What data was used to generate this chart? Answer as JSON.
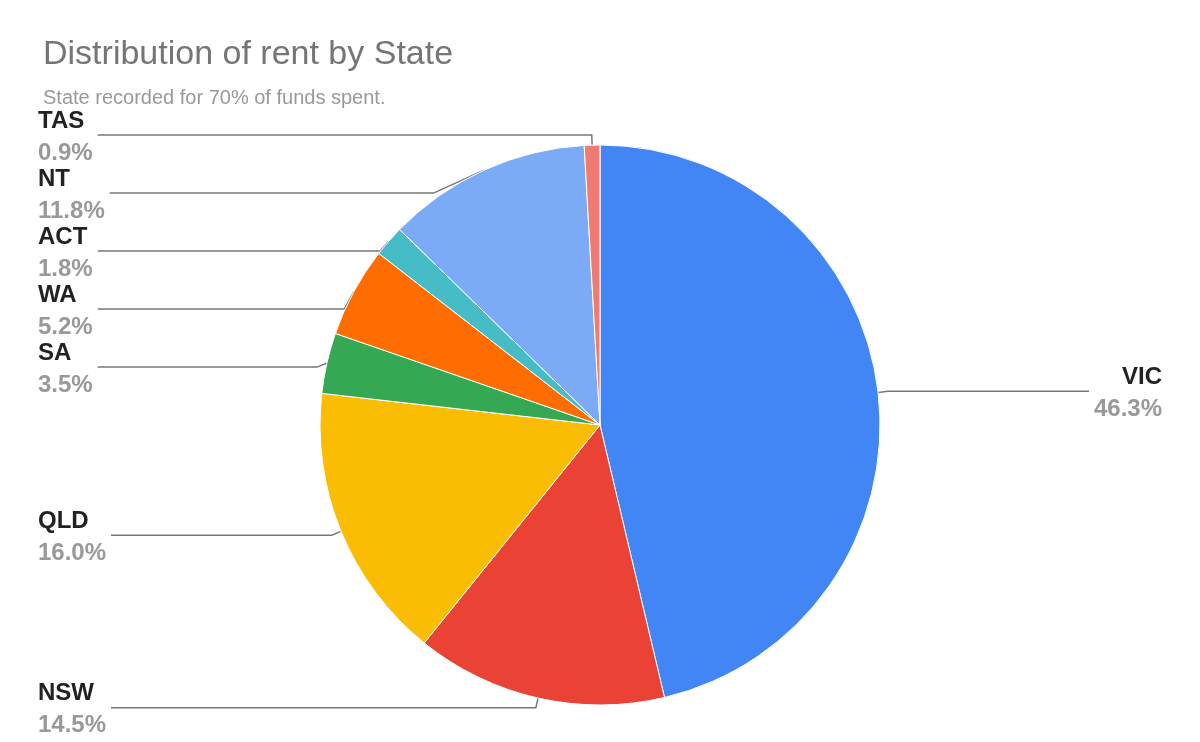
{
  "chart_data": {
    "type": "pie",
    "title": "Distribution of rent by State",
    "subtitle": "State recorded for 70% of funds spent.",
    "categories": [
      "VIC",
      "NSW",
      "QLD",
      "SA",
      "WA",
      "ACT",
      "NT",
      "TAS"
    ],
    "values": [
      46.3,
      14.5,
      16.0,
      3.5,
      5.2,
      1.8,
      11.8,
      0.9
    ],
    "colors": [
      "#4285f4",
      "#ea4335",
      "#fbbc04",
      "#34a853",
      "#ff6d01",
      "#46bdc6",
      "#7baaf7",
      "#f07b72"
    ],
    "value_labels": [
      "46.3%",
      "14.5%",
      "16.0%",
      "3.5%",
      "5.2%",
      "1.8%",
      "11.8%",
      "0.9%"
    ],
    "legend": false
  }
}
